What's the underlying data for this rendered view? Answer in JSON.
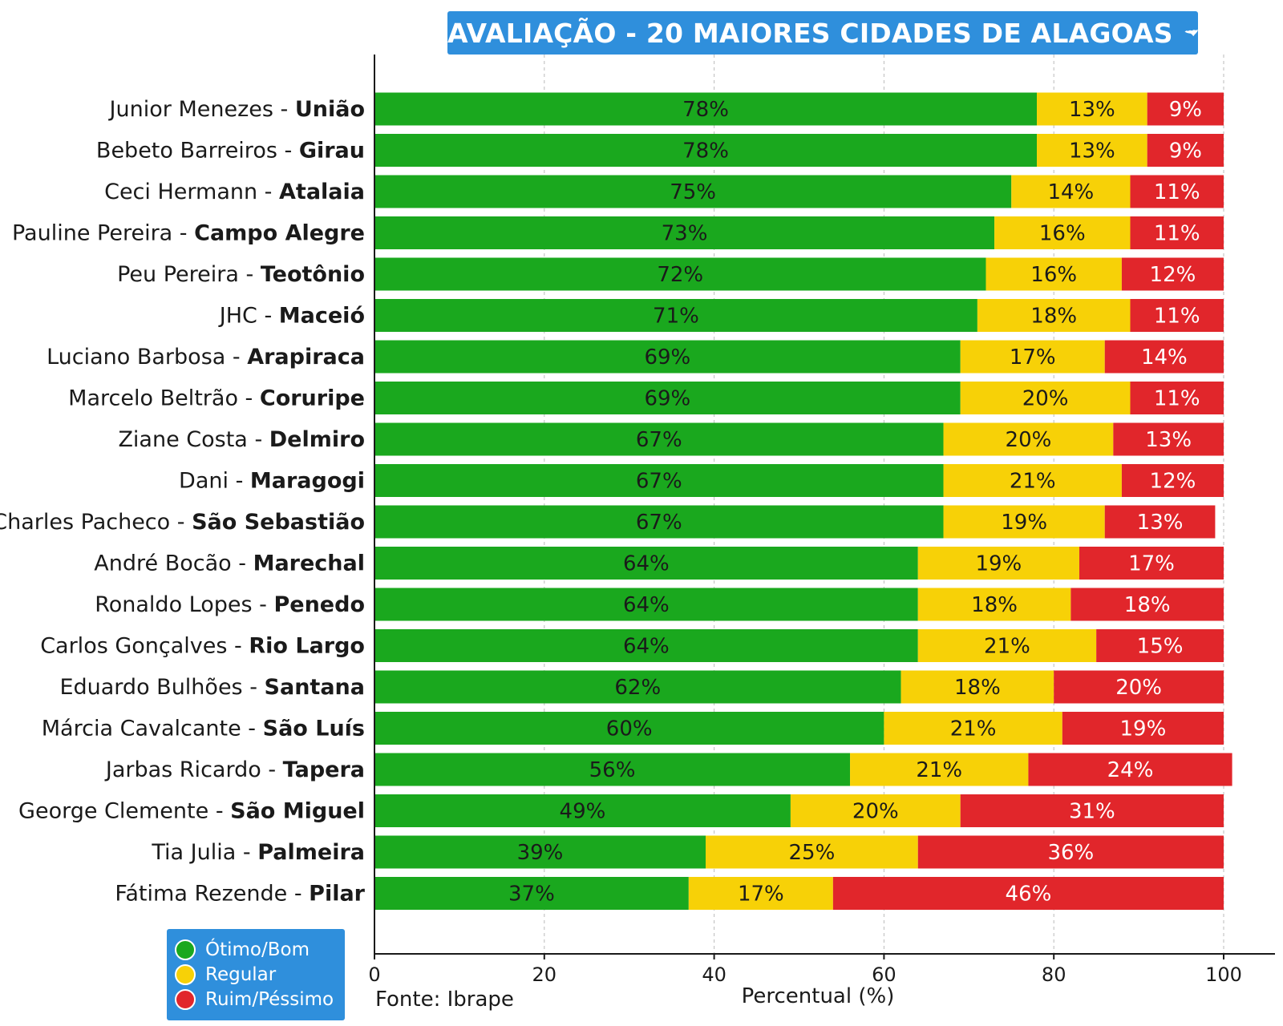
{
  "title": "AVALIAÇÃO - 20 MAIORES CIDADES DE ALAGOAS",
  "source": "Fonte: Ibrape",
  "colors": {
    "otimo": "#1aa81e",
    "regular": "#f7d107",
    "ruim": "#e1262b",
    "title_bg": "#2f8fdc"
  },
  "chart_data": {
    "type": "bar",
    "orientation": "horizontal",
    "stacked": true,
    "xlabel": "Percentual (%)",
    "xlim": [
      0,
      100
    ],
    "xticks": [
      0,
      20,
      40,
      60,
      80,
      100
    ],
    "grid": true,
    "legend_position": "bottom-left",
    "categories": [
      {
        "name": "Junior Menezes",
        "city": "União"
      },
      {
        "name": "Bebeto Barreiros",
        "city": "Girau"
      },
      {
        "name": "Ceci Hermann",
        "city": "Atalaia"
      },
      {
        "name": "Pauline Pereira",
        "city": "Campo Alegre"
      },
      {
        "name": "Peu Pereira",
        "city": "Teotônio"
      },
      {
        "name": "JHC",
        "city": "Maceió"
      },
      {
        "name": "Luciano Barbosa",
        "city": "Arapiraca"
      },
      {
        "name": "Marcelo Beltrão",
        "city": "Coruripe"
      },
      {
        "name": "Ziane Costa",
        "city": "Delmiro"
      },
      {
        "name": "Dani",
        "city": "Maragogi"
      },
      {
        "name": "Charles Pacheco",
        "city": "São Sebastião"
      },
      {
        "name": "André Bocão",
        "city": "Marechal"
      },
      {
        "name": "Ronaldo Lopes",
        "city": "Penedo"
      },
      {
        "name": "Carlos Gonçalves",
        "city": "Rio Largo"
      },
      {
        "name": "Eduardo Bulhões",
        "city": "Santana"
      },
      {
        "name": "Márcia Cavalcante",
        "city": "São Luís"
      },
      {
        "name": "Jarbas Ricardo",
        "city": "Tapera"
      },
      {
        "name": "George Clemente",
        "city": "São Miguel"
      },
      {
        "name": "Tia Julia",
        "city": "Palmeira"
      },
      {
        "name": "Fátima Rezende",
        "city": "Pilar"
      }
    ],
    "series": [
      {
        "name": "Ótimo/Bom",
        "color": "#1aa81e",
        "values": [
          78,
          78,
          75,
          73,
          72,
          71,
          69,
          69,
          67,
          67,
          67,
          64,
          64,
          64,
          62,
          60,
          56,
          49,
          39,
          37
        ]
      },
      {
        "name": "Regular",
        "color": "#f7d107",
        "values": [
          13,
          13,
          14,
          16,
          16,
          18,
          17,
          20,
          20,
          21,
          19,
          19,
          18,
          21,
          18,
          21,
          21,
          20,
          25,
          17
        ]
      },
      {
        "name": "Ruim/Péssimo",
        "color": "#e1262b",
        "values": [
          9,
          9,
          11,
          11,
          12,
          11,
          14,
          11,
          13,
          12,
          13,
          17,
          18,
          15,
          20,
          19,
          24,
          31,
          36,
          46
        ]
      }
    ]
  }
}
